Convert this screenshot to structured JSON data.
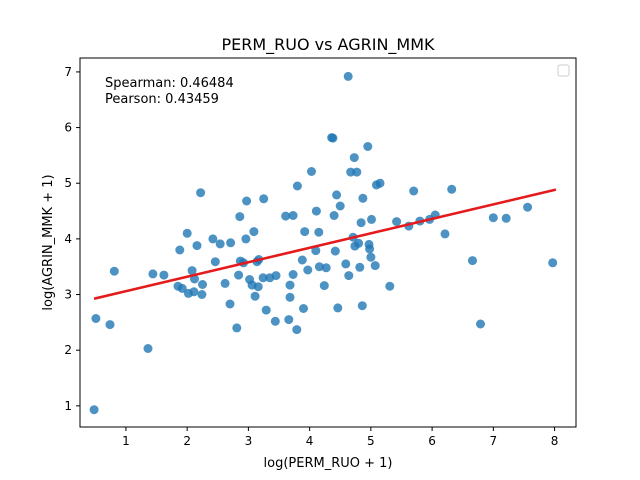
{
  "chart_data": {
    "type": "scatter",
    "title": "PERM_RUO vs AGRIN_MMK",
    "xlabel": "log(PERM_RUO + 1)",
    "ylabel": "log(AGRIN_MMK + 1)",
    "xlim": [
      0.25,
      8.35
    ],
    "ylim": [
      0.62,
      7.25
    ],
    "xticks": [
      1,
      2,
      3,
      4,
      5,
      6,
      7,
      8
    ],
    "yticks": [
      1,
      2,
      3,
      4,
      5,
      6,
      7
    ],
    "grid": false,
    "legend": "top-right, empty",
    "annotations": {
      "spearman": "Spearman: 0.46484",
      "pearson": "Pearson: 0.43459"
    },
    "colors": {
      "points": "#1f77b4",
      "fit_line": "#e41a1c"
    },
    "fit_line": {
      "x": [
        0.5,
        8.0
      ],
      "y": [
        2.93,
        4.88
      ]
    },
    "points": [
      {
        "x": 0.48,
        "y": 0.93
      },
      {
        "x": 0.51,
        "y": 2.57
      },
      {
        "x": 0.74,
        "y": 2.46
      },
      {
        "x": 0.81,
        "y": 3.42
      },
      {
        "x": 1.36,
        "y": 2.03
      },
      {
        "x": 1.44,
        "y": 3.37
      },
      {
        "x": 1.62,
        "y": 3.35
      },
      {
        "x": 1.85,
        "y": 3.15
      },
      {
        "x": 1.88,
        "y": 3.8
      },
      {
        "x": 1.92,
        "y": 3.11
      },
      {
        "x": 2.0,
        "y": 4.1
      },
      {
        "x": 2.02,
        "y": 3.02
      },
      {
        "x": 2.08,
        "y": 3.43
      },
      {
        "x": 2.11,
        "y": 3.05
      },
      {
        "x": 2.12,
        "y": 3.28
      },
      {
        "x": 2.16,
        "y": 3.88
      },
      {
        "x": 2.22,
        "y": 4.83
      },
      {
        "x": 2.24,
        "y": 3.0
      },
      {
        "x": 2.25,
        "y": 3.18
      },
      {
        "x": 2.42,
        "y": 4.0
      },
      {
        "x": 2.46,
        "y": 3.59
      },
      {
        "x": 2.54,
        "y": 3.91
      },
      {
        "x": 2.62,
        "y": 3.2
      },
      {
        "x": 2.7,
        "y": 2.83
      },
      {
        "x": 2.71,
        "y": 3.93
      },
      {
        "x": 2.81,
        "y": 2.4
      },
      {
        "x": 2.84,
        "y": 3.35
      },
      {
        "x": 2.86,
        "y": 4.4
      },
      {
        "x": 2.87,
        "y": 3.6
      },
      {
        "x": 2.92,
        "y": 3.57
      },
      {
        "x": 2.96,
        "y": 4.0
      },
      {
        "x": 2.97,
        "y": 4.68
      },
      {
        "x": 3.02,
        "y": 3.27
      },
      {
        "x": 3.06,
        "y": 3.17
      },
      {
        "x": 3.09,
        "y": 4.13
      },
      {
        "x": 3.11,
        "y": 2.97
      },
      {
        "x": 3.14,
        "y": 3.59
      },
      {
        "x": 3.16,
        "y": 3.14
      },
      {
        "x": 3.17,
        "y": 3.63
      },
      {
        "x": 3.24,
        "y": 3.3
      },
      {
        "x": 3.25,
        "y": 4.72
      },
      {
        "x": 3.29,
        "y": 2.72
      },
      {
        "x": 3.35,
        "y": 3.3
      },
      {
        "x": 3.44,
        "y": 2.52
      },
      {
        "x": 3.45,
        "y": 3.34
      },
      {
        "x": 3.61,
        "y": 4.41
      },
      {
        "x": 3.66,
        "y": 2.55
      },
      {
        "x": 3.68,
        "y": 3.17
      },
      {
        "x": 3.68,
        "y": 2.95
      },
      {
        "x": 3.73,
        "y": 3.36
      },
      {
        "x": 3.73,
        "y": 4.42
      },
      {
        "x": 3.79,
        "y": 2.37
      },
      {
        "x": 3.8,
        "y": 4.95
      },
      {
        "x": 3.88,
        "y": 3.62
      },
      {
        "x": 3.9,
        "y": 2.75
      },
      {
        "x": 3.92,
        "y": 4.13
      },
      {
        "x": 3.97,
        "y": 3.44
      },
      {
        "x": 4.03,
        "y": 5.21
      },
      {
        "x": 4.1,
        "y": 3.79
      },
      {
        "x": 4.11,
        "y": 4.5
      },
      {
        "x": 4.15,
        "y": 4.12
      },
      {
        "x": 4.16,
        "y": 3.5
      },
      {
        "x": 4.24,
        "y": 3.16
      },
      {
        "x": 4.27,
        "y": 3.48
      },
      {
        "x": 4.36,
        "y": 5.82
      },
      {
        "x": 4.38,
        "y": 5.81
      },
      {
        "x": 4.4,
        "y": 4.42
      },
      {
        "x": 4.42,
        "y": 3.78
      },
      {
        "x": 4.44,
        "y": 4.79
      },
      {
        "x": 4.46,
        "y": 2.76
      },
      {
        "x": 4.5,
        "y": 4.59
      },
      {
        "x": 4.59,
        "y": 3.55
      },
      {
        "x": 4.63,
        "y": 6.92
      },
      {
        "x": 4.64,
        "y": 3.34
      },
      {
        "x": 4.67,
        "y": 5.2
      },
      {
        "x": 4.71,
        "y": 4.03
      },
      {
        "x": 4.73,
        "y": 5.46
      },
      {
        "x": 4.74,
        "y": 3.87
      },
      {
        "x": 4.77,
        "y": 5.2
      },
      {
        "x": 4.8,
        "y": 3.92
      },
      {
        "x": 4.82,
        "y": 3.49
      },
      {
        "x": 4.84,
        "y": 4.29
      },
      {
        "x": 4.86,
        "y": 2.8
      },
      {
        "x": 4.87,
        "y": 4.73
      },
      {
        "x": 4.95,
        "y": 5.66
      },
      {
        "x": 4.97,
        "y": 3.9
      },
      {
        "x": 4.98,
        "y": 3.82
      },
      {
        "x": 5.0,
        "y": 3.67
      },
      {
        "x": 5.01,
        "y": 4.35
      },
      {
        "x": 5.07,
        "y": 3.52
      },
      {
        "x": 5.09,
        "y": 4.97
      },
      {
        "x": 5.15,
        "y": 5.0
      },
      {
        "x": 5.31,
        "y": 3.15
      },
      {
        "x": 5.42,
        "y": 4.31
      },
      {
        "x": 5.62,
        "y": 4.23
      },
      {
        "x": 5.7,
        "y": 4.86
      },
      {
        "x": 5.8,
        "y": 4.32
      },
      {
        "x": 5.96,
        "y": 4.35
      },
      {
        "x": 6.05,
        "y": 4.43
      },
      {
        "x": 6.21,
        "y": 4.09
      },
      {
        "x": 6.32,
        "y": 4.89
      },
      {
        "x": 6.66,
        "y": 3.61
      },
      {
        "x": 6.79,
        "y": 2.47
      },
      {
        "x": 7.0,
        "y": 4.38
      },
      {
        "x": 7.21,
        "y": 4.37
      },
      {
        "x": 7.56,
        "y": 4.57
      },
      {
        "x": 7.97,
        "y": 3.57
      }
    ]
  }
}
